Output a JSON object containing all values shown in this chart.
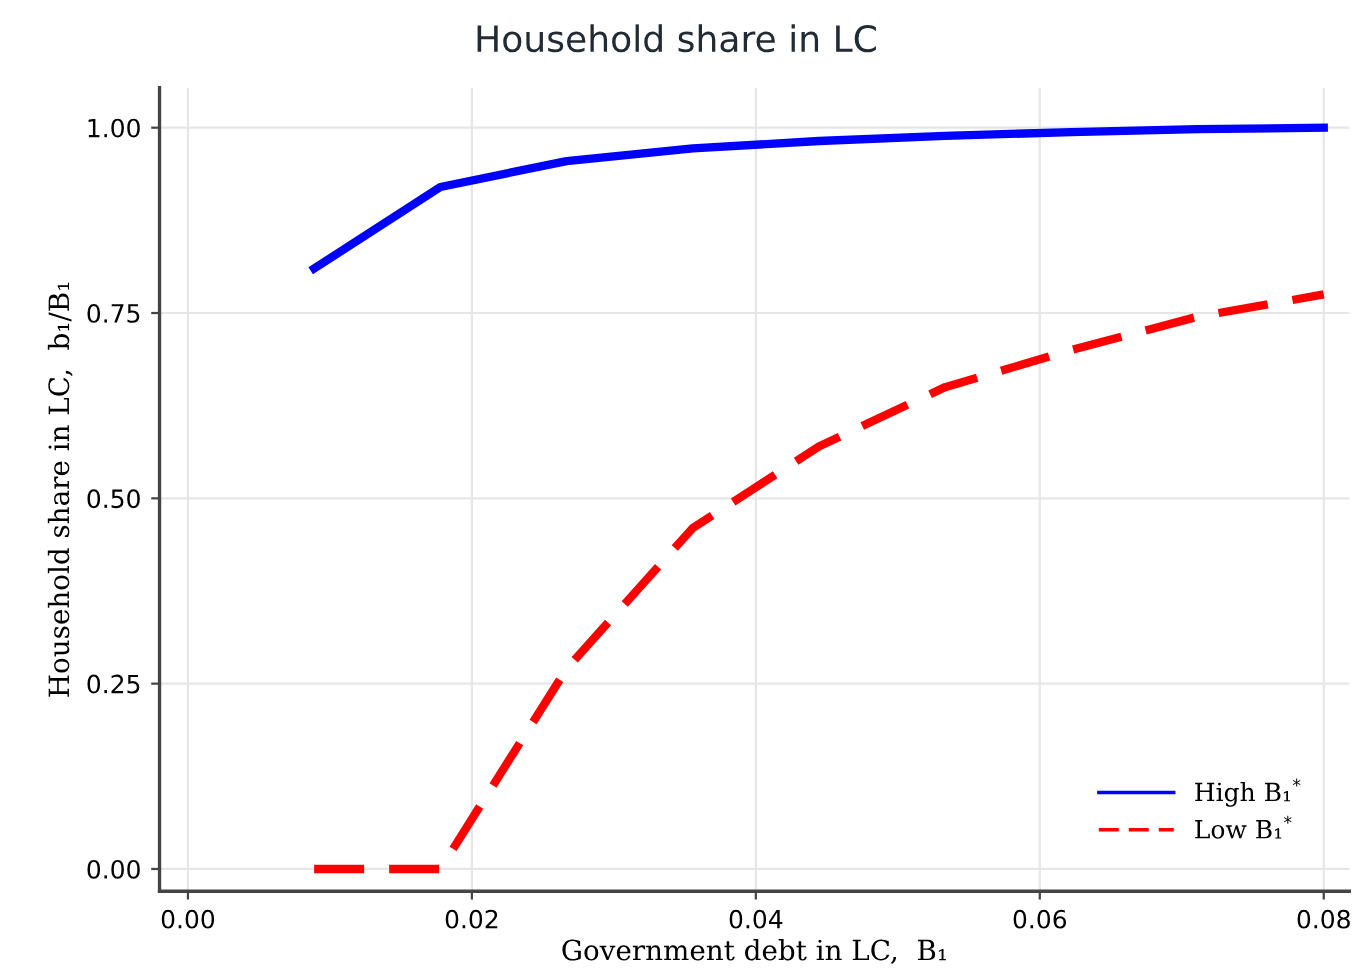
{
  "chart_data": {
    "type": "line",
    "title": "Household share in LC",
    "xlabel": "Government debt in LC,  B₁",
    "ylabel": "Household share in LC,  b₁/B₁",
    "x": [
      0.00889,
      0.01778,
      0.02667,
      0.03556,
      0.04444,
      0.05333,
      0.06222,
      0.07111,
      0.08
    ],
    "series": [
      {
        "name": "High B₁$^{*}$",
        "color": "#0000ff",
        "line_style": "solid",
        "values": [
          0.81,
          0.92,
          0.955,
          0.972,
          0.982,
          0.989,
          0.994,
          0.998,
          1.0
        ]
      },
      {
        "name": "Low B₁$^{*}$",
        "color": "#ff0000",
        "line_style": "dashed",
        "values": [
          0.0,
          0.0,
          0.27,
          0.46,
          0.57,
          0.65,
          0.7,
          0.745,
          0.775
        ]
      }
    ],
    "xlim": [
      -0.002,
      0.0818
    ],
    "ylim": [
      -0.03,
      1.054
    ],
    "xticks": [
      {
        "value": 0,
        "label": "0.00"
      },
      {
        "value": 0.02,
        "label": "0.02"
      },
      {
        "value": 0.04,
        "label": "0.04"
      },
      {
        "value": 0.06,
        "label": "0.06"
      },
      {
        "value": 0.08,
        "label": "0.08"
      }
    ],
    "yticks": [
      {
        "value": 0,
        "label": "0.00"
      },
      {
        "value": 0.25,
        "label": "0.25"
      },
      {
        "value": 0.5,
        "label": "0.50"
      },
      {
        "value": 0.75,
        "label": "0.75"
      },
      {
        "value": 1,
        "label": "1.00"
      }
    ],
    "grid": true,
    "legend": "bottom right"
  }
}
